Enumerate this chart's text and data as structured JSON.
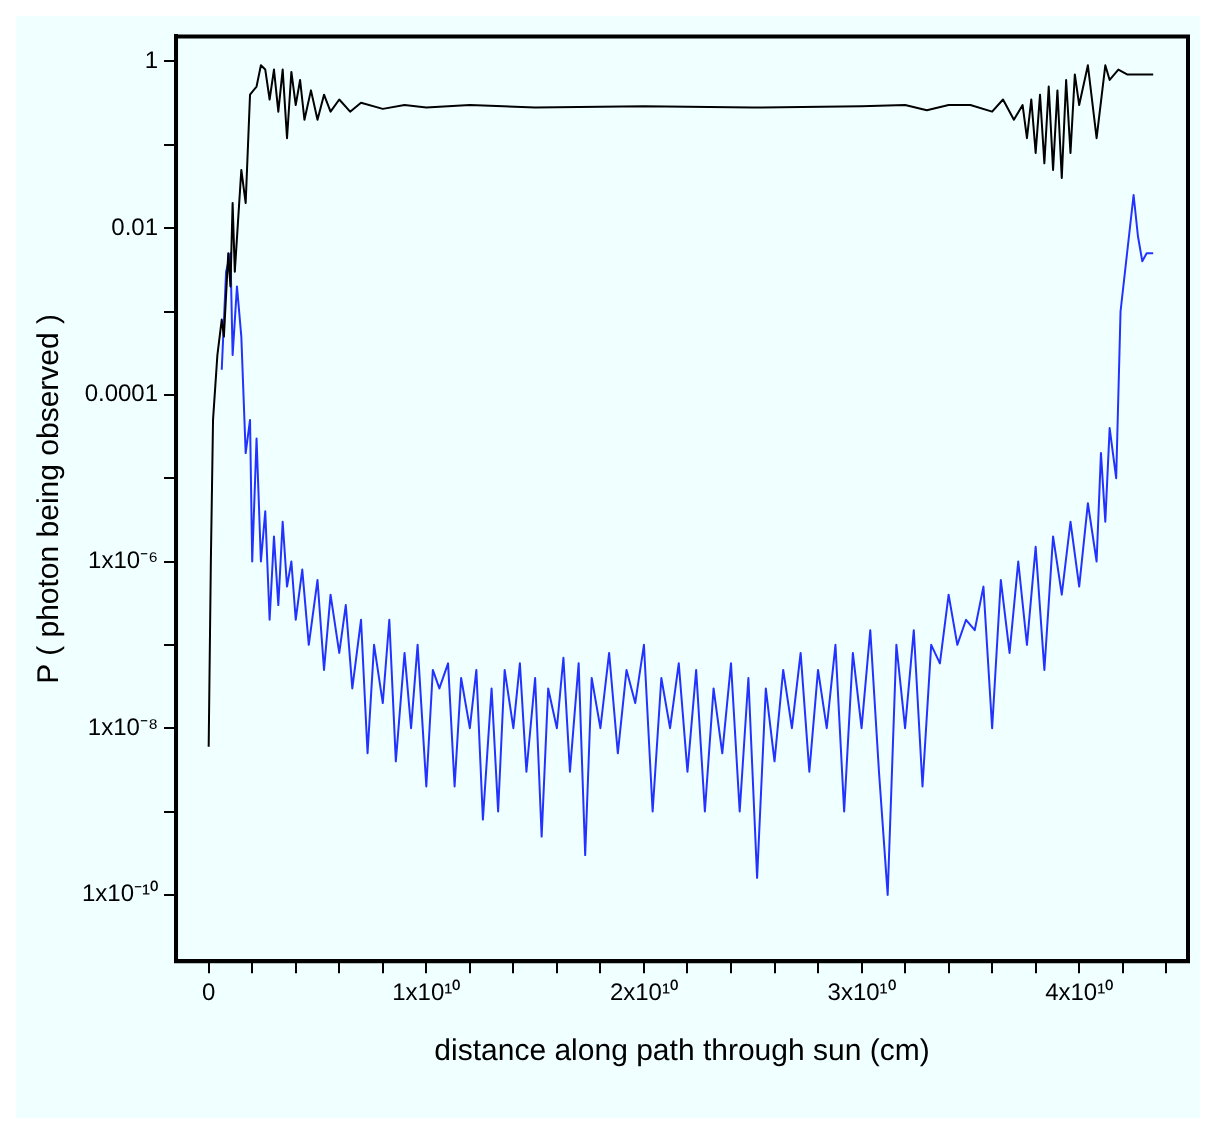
{
  "chart_data": {
    "type": "line",
    "xlabel": "distance along path through sun (cm)",
    "ylabel": "P ( photon being observed )",
    "log": "y",
    "grid": false,
    "legend": false,
    "marker": "none",
    "line_style": "solid",
    "xlim": [
      -1500000000.0,
      45000000000.0
    ],
    "xticks": [
      {
        "value": 0,
        "label": "0"
      },
      {
        "value": 2000000000.0,
        "label": null
      },
      {
        "value": 4000000000.0,
        "label": null
      },
      {
        "value": 6000000000.0,
        "label": null
      },
      {
        "value": 8000000000.0,
        "label": null
      },
      {
        "value": 10000000000.0,
        "label": "1x10¹⁰"
      },
      {
        "value": 12000000000.0,
        "label": null
      },
      {
        "value": 14000000000.0,
        "label": null
      },
      {
        "value": 16000000000.0,
        "label": null
      },
      {
        "value": 18000000000.0,
        "label": null
      },
      {
        "value": 20000000000.0,
        "label": "2x10¹⁰"
      },
      {
        "value": 22000000000.0,
        "label": null
      },
      {
        "value": 24000000000.0,
        "label": null
      },
      {
        "value": 26000000000.0,
        "label": null
      },
      {
        "value": 28000000000.0,
        "label": null
      },
      {
        "value": 30000000000.0,
        "label": "3x10¹⁰"
      },
      {
        "value": 32000000000.0,
        "label": null
      },
      {
        "value": 34000000000.0,
        "label": null
      },
      {
        "value": 36000000000.0,
        "label": null
      },
      {
        "value": 38000000000.0,
        "label": null
      },
      {
        "value": 40000000000.0,
        "label": "4x10¹⁰"
      },
      {
        "value": 42000000000.0,
        "label": null
      },
      {
        "value": 44000000000.0,
        "label": null
      }
    ],
    "ylim": [
      1.6e-11,
      2
    ],
    "yticks": [
      {
        "value": 1e-10,
        "label": "1x10⁻¹⁰"
      },
      {
        "value": 1e-09,
        "label": null
      },
      {
        "value": 1e-08,
        "label": "1x10⁻⁸"
      },
      {
        "value": 1e-07,
        "label": null
      },
      {
        "value": 1e-06,
        "label": "1x10⁻⁶"
      },
      {
        "value": 1e-05,
        "label": null
      },
      {
        "value": 0.0001,
        "label": "0.0001"
      },
      {
        "value": 0.001,
        "label": null
      },
      {
        "value": 0.01,
        "label": "0.01"
      },
      {
        "value": 0.1,
        "label": null
      },
      {
        "value": 1,
        "label": "1"
      }
    ],
    "series": [
      {
        "color": "#000000",
        "x": [
          0,
          100000000.0,
          200000000.0,
          400000000.0,
          600000000.0,
          700000000.0,
          900000000.0,
          1000000000.0,
          1100000000.0,
          1200000000.0,
          1500000000.0,
          1700000000.0,
          1900000000.0,
          2200000000.0,
          2400000000.0,
          2600000000.0,
          2800000000.0,
          3000000000.0,
          3200000000.0,
          3400000000.0,
          3600000000.0,
          3800000000.0,
          4000000000.0,
          4200000000.0,
          4400000000.0,
          4700000000.0,
          5000000000.0,
          5300000000.0,
          5600000000.0,
          6000000000.0,
          6500000000.0,
          7000000000.0,
          8000000000.0,
          9000000000.0,
          10000000000.0,
          12000000000.0,
          15000000000.0,
          20000000000.0,
          25000000000.0,
          30000000000.0,
          32000000000.0,
          33000000000.0,
          34000000000.0,
          35000000000.0,
          36000000000.0,
          36500000000.0,
          37000000000.0,
          37400000000.0,
          37600000000.0,
          37800000000.0,
          38000000000.0,
          38200000000.0,
          38400000000.0,
          38600000000.0,
          38800000000.0,
          39000000000.0,
          39200000000.0,
          39400000000.0,
          39600000000.0,
          39800000000.0,
          40000000000.0,
          40400000000.0,
          40800000000.0,
          41200000000.0,
          41400000000.0,
          41800000000.0,
          42200000000.0,
          43400000000.0
        ],
        "values": [
          6e-09,
          1e-06,
          5e-05,
          0.0003,
          0.0008,
          0.0005,
          0.005,
          0.002,
          0.02,
          0.003,
          0.05,
          0.02,
          0.4,
          0.5,
          0.9,
          0.8,
          0.35,
          0.8,
          0.25,
          0.8,
          0.12,
          0.75,
          0.3,
          0.6,
          0.2,
          0.45,
          0.2,
          0.4,
          0.25,
          0.35,
          0.25,
          0.32,
          0.27,
          0.3,
          0.28,
          0.3,
          0.28,
          0.29,
          0.28,
          0.29,
          0.3,
          0.26,
          0.3,
          0.3,
          0.25,
          0.35,
          0.2,
          0.3,
          0.12,
          0.35,
          0.08,
          0.4,
          0.06,
          0.5,
          0.05,
          0.45,
          0.04,
          0.6,
          0.08,
          0.7,
          0.3,
          0.9,
          0.12,
          0.9,
          0.6,
          0.8,
          0.7,
          0.7
        ]
      },
      {
        "color": "#2233ff",
        "x": [
          600000000.0,
          800000000.0,
          1000000000.0,
          1100000000.0,
          1300000000.0,
          1500000000.0,
          1700000000.0,
          1900000000.0,
          2000000000.0,
          2200000000.0,
          2400000000.0,
          2600000000.0,
          2800000000.0,
          3000000000.0,
          3200000000.0,
          3400000000.0,
          3600000000.0,
          3800000000.0,
          4000000000.0,
          4300000000.0,
          4600000000.0,
          5000000000.0,
          5300000000.0,
          5600000000.0,
          6000000000.0,
          6300000000.0,
          6600000000.0,
          7000000000.0,
          7300000000.0,
          7600000000.0,
          8000000000.0,
          8300000000.0,
          8600000000.0,
          9000000000.0,
          9300000000.0,
          9600000000.0,
          10000000000.0,
          10300000000.0,
          10600000000.0,
          11000000000.0,
          11300000000.0,
          11600000000.0,
          12000000000.0,
          12300000000.0,
          12600000000.0,
          13000000000.0,
          13300000000.0,
          13600000000.0,
          14000000000.0,
          14300000000.0,
          14600000000.0,
          15000000000.0,
          15300000000.0,
          15600000000.0,
          16000000000.0,
          16300000000.0,
          16600000000.0,
          17000000000.0,
          17300000000.0,
          17600000000.0,
          18000000000.0,
          18400000000.0,
          18800000000.0,
          19200000000.0,
          19600000000.0,
          20000000000.0,
          20400000000.0,
          20800000000.0,
          21200000000.0,
          21600000000.0,
          22000000000.0,
          22400000000.0,
          22800000000.0,
          23200000000.0,
          23600000000.0,
          24000000000.0,
          24400000000.0,
          24800000000.0,
          25200000000.0,
          25600000000.0,
          26000000000.0,
          26400000000.0,
          26800000000.0,
          27200000000.0,
          27600000000.0,
          28000000000.0,
          28400000000.0,
          28800000000.0,
          29200000000.0,
          29600000000.0,
          30000000000.0,
          30400000000.0,
          30800000000.0,
          31200000000.0,
          31600000000.0,
          32000000000.0,
          32400000000.0,
          32800000000.0,
          33200000000.0,
          33600000000.0,
          34000000000.0,
          34400000000.0,
          34800000000.0,
          35200000000.0,
          35600000000.0,
          36000000000.0,
          36400000000.0,
          36800000000.0,
          37200000000.0,
          37600000000.0,
          38000000000.0,
          38400000000.0,
          38800000000.0,
          39200000000.0,
          39600000000.0,
          40000000000.0,
          40400000000.0,
          40800000000.0,
          41000000000.0,
          41200000000.0,
          41400000000.0,
          41700000000.0,
          41900000000.0,
          42200000000.0,
          42500000000.0,
          42700000000.0,
          42900000000.0,
          43100000000.0,
          43400000000.0
        ],
        "values": [
          0.0002,
          0.003,
          0.005,
          0.0003,
          0.002,
          0.0005,
          2e-05,
          5e-05,
          1e-06,
          3e-05,
          1e-06,
          4e-06,
          2e-07,
          2e-06,
          3e-07,
          3e-06,
          5e-07,
          1e-06,
          2e-07,
          8e-07,
          1e-07,
          6e-07,
          5e-08,
          4e-07,
          8e-08,
          3e-07,
          3e-08,
          2e-07,
          5e-09,
          1e-07,
          2e-08,
          2e-07,
          4e-09,
          8e-08,
          1e-08,
          1e-07,
          2e-09,
          5e-08,
          3e-08,
          6e-08,
          2e-09,
          4e-08,
          1e-08,
          5e-08,
          8e-10,
          3e-08,
          1e-09,
          5e-08,
          1e-08,
          6e-08,
          3e-09,
          4e-08,
          5e-10,
          3e-08,
          1e-08,
          7e-08,
          3e-09,
          6e-08,
          3e-10,
          4e-08,
          1e-08,
          8e-08,
          5e-09,
          5e-08,
          2e-08,
          1e-07,
          1e-09,
          4e-08,
          1e-08,
          6e-08,
          3e-09,
          5e-08,
          1e-09,
          3e-08,
          5e-09,
          6e-08,
          1e-09,
          4e-08,
          1.6e-10,
          3e-08,
          4e-09,
          5e-08,
          1e-08,
          8e-08,
          3e-09,
          5e-08,
          1e-08,
          1e-07,
          1e-09,
          8e-08,
          1e-08,
          1.5e-07,
          3e-09,
          1e-10,
          1e-07,
          1e-08,
          1.5e-07,
          2e-09,
          1e-07,
          6e-08,
          4e-07,
          1e-07,
          2e-07,
          1.5e-07,
          5e-07,
          1e-08,
          6e-07,
          8e-08,
          1e-06,
          1e-07,
          1.5e-06,
          5e-08,
          2e-06,
          4e-07,
          3e-06,
          5e-07,
          5e-06,
          1e-06,
          2e-05,
          3e-06,
          4e-05,
          1e-05,
          0.001,
          0.005,
          0.025,
          0.008,
          0.004,
          0.005,
          0.005
        ]
      }
    ]
  }
}
